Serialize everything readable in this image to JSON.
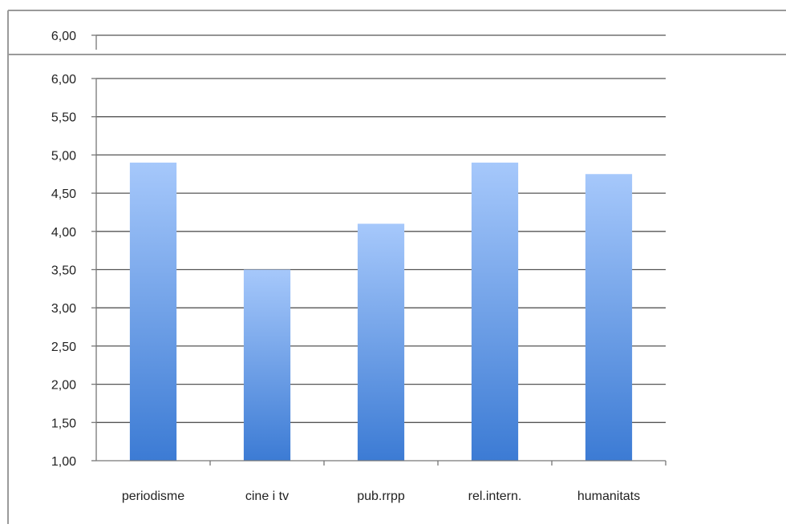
{
  "top_fragment": {
    "tick_label": "6,00"
  },
  "chart_data": {
    "type": "bar",
    "title": "",
    "xlabel": "",
    "ylabel": "",
    "categories": [
      "periodisme",
      "cine i tv",
      "pub.rrpp",
      "rel.intern.",
      "humanitats"
    ],
    "values": [
      4.9,
      3.5,
      4.1,
      4.9,
      4.75
    ],
    "ylim": [
      1.0,
      6.0
    ],
    "ytick_step": 0.5,
    "ytick_labels": [
      "1,00",
      "1,50",
      "2,00",
      "2,50",
      "3,00",
      "3,50",
      "4,00",
      "4,50",
      "5,00",
      "5,50",
      "6,00"
    ],
    "grid": true,
    "legend": "none",
    "colors": {
      "bar_top": "#a6c8fb",
      "bar_bottom": "#3c7bd4",
      "gridline": "#555555",
      "axis": "#777777",
      "frame": "#9a9a9a"
    }
  }
}
